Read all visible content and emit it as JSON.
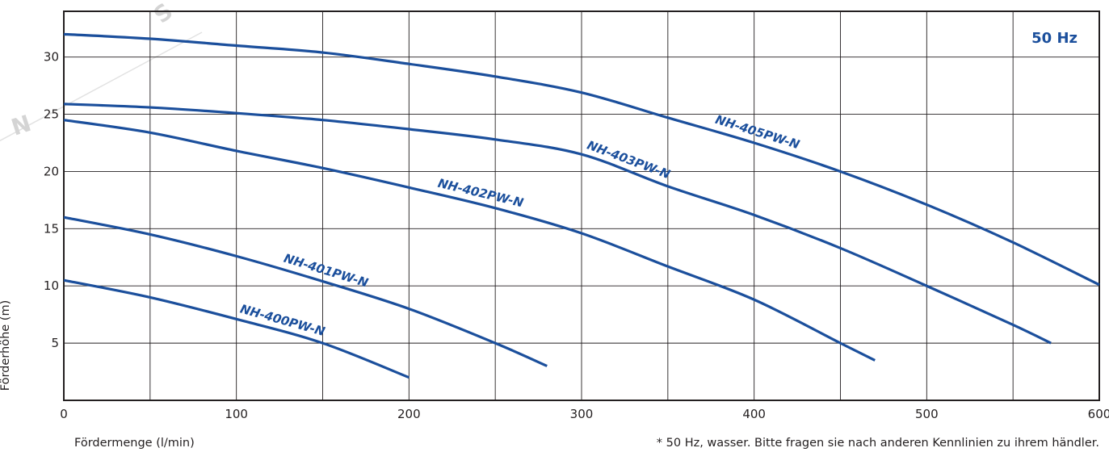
{
  "colors": {
    "series": "#1b4f9c",
    "grid": "#231f20",
    "text": "#231f20",
    "watermark": "#d4d4d4"
  },
  "chart_data": {
    "type": "line",
    "title": "",
    "annotation": "50 Hz",
    "xlabel": "Fördermenge (l/min)",
    "ylabel": "Förderhöhe (m)",
    "footnote": "* 50 Hz, wasser. Bitte fragen sie nach anderen Kennlinien zu ihrem händler.",
    "xlim": [
      0,
      600
    ],
    "ylim": [
      0,
      34
    ],
    "xticks": [
      0,
      100,
      200,
      300,
      400,
      500,
      600
    ],
    "yticks": [
      5,
      10,
      15,
      20,
      25,
      30
    ],
    "x_grid_step": 50,
    "grid": true,
    "legend": "inline-labels",
    "series": [
      {
        "name": "NH-405PW-N",
        "points": [
          [
            0,
            32
          ],
          [
            50,
            31.6
          ],
          [
            100,
            31
          ],
          [
            150,
            30.4
          ],
          [
            200,
            29.4
          ],
          [
            250,
            28.3
          ],
          [
            300,
            26.9
          ],
          [
            350,
            24.7
          ],
          [
            400,
            22.5
          ],
          [
            450,
            20
          ],
          [
            500,
            17.1
          ],
          [
            550,
            13.8
          ],
          [
            600,
            10.1
          ]
        ]
      },
      {
        "name": "NH-403PW-N",
        "points": [
          [
            0,
            25.9
          ],
          [
            50,
            25.6
          ],
          [
            100,
            25.1
          ],
          [
            150,
            24.5
          ],
          [
            200,
            23.7
          ],
          [
            250,
            22.8
          ],
          [
            300,
            21.5
          ],
          [
            350,
            18.7
          ],
          [
            400,
            16.2
          ],
          [
            450,
            13.3
          ],
          [
            500,
            10
          ],
          [
            550,
            6.6
          ],
          [
            572,
            5
          ]
        ]
      },
      {
        "name": "NH-402PW-N",
        "points": [
          [
            0,
            24.5
          ],
          [
            50,
            23.4
          ],
          [
            100,
            21.8
          ],
          [
            150,
            20.3
          ],
          [
            200,
            18.6
          ],
          [
            250,
            16.8
          ],
          [
            300,
            14.6
          ],
          [
            350,
            11.7
          ],
          [
            400,
            8.8
          ],
          [
            450,
            5
          ],
          [
            470,
            3.5
          ]
        ]
      },
      {
        "name": "NH-401PW-N",
        "points": [
          [
            0,
            16
          ],
          [
            50,
            14.5
          ],
          [
            100,
            12.6
          ],
          [
            150,
            10.4
          ],
          [
            200,
            8
          ],
          [
            250,
            5
          ],
          [
            280,
            3
          ]
        ]
      },
      {
        "name": "NH-400PW-N",
        "points": [
          [
            0,
            10.5
          ],
          [
            50,
            9
          ],
          [
            100,
            7.1
          ],
          [
            150,
            5
          ],
          [
            200,
            2
          ]
        ]
      }
    ]
  }
}
